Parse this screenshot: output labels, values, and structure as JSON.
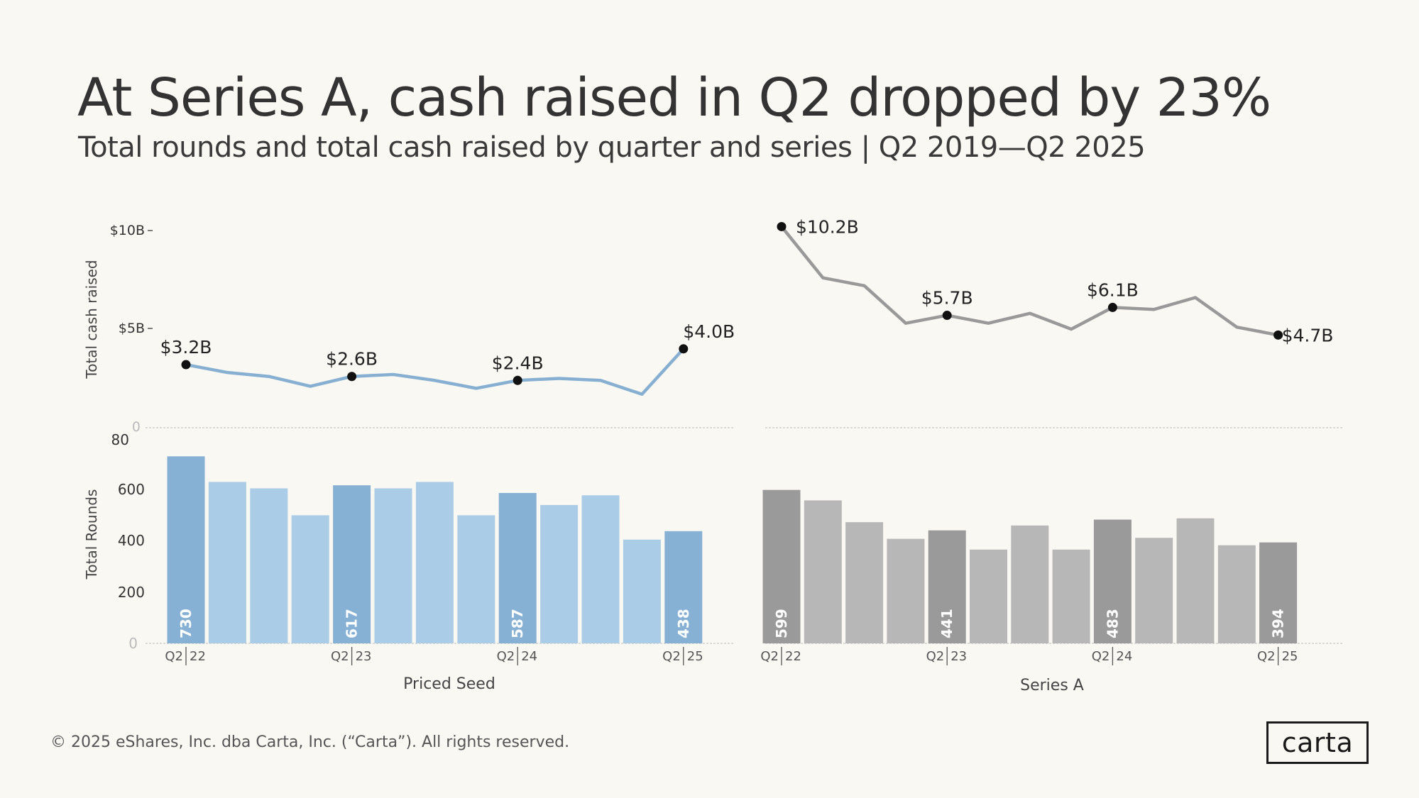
{
  "header": {
    "title": "At Series A, cash raised in Q2 dropped by 23%",
    "subtitle": "Total rounds and total cash raised by quarter and series | Q2 2019—Q2 2025"
  },
  "footer": {
    "copyright": "© 2025 eShares, Inc. dba Carta, Inc. (“Carta”). All rights reserved."
  },
  "logo": {
    "text": "carta"
  },
  "axes": {
    "cash_label": "Total cash raised",
    "rounds_label": "Total Rounds",
    "cash_ticks": [
      "$10B",
      "$5B",
      "0"
    ],
    "rounds_ticks": [
      "80",
      "600",
      "400",
      "200",
      "0"
    ]
  },
  "colors": {
    "seed_line": "#86afd2",
    "seed_bar_highlight": "#87b1d4",
    "seed_bar": "#abcce6",
    "seriesa_line": "#999999",
    "seriesa_bar_highlight": "#9a9a9a",
    "seriesa_bar": "#b7b7b7"
  },
  "chart_data": [
    {
      "type": "line",
      "panel": "Priced Seed",
      "series_name": "Total cash raised",
      "unit": "$B",
      "y_range": [
        0,
        10
      ],
      "values": [
        3.2,
        2.8,
        2.6,
        2.1,
        2.6,
        2.7,
        2.4,
        2.0,
        2.4,
        2.5,
        2.4,
        1.7,
        4.0
      ],
      "labels": {
        "0": "$3.2B",
        "4": "$2.6B",
        "8": "$2.4B",
        "12": "$4.0B"
      }
    },
    {
      "type": "bar",
      "panel": "Priced Seed",
      "xlabel": "Priced Seed",
      "series_name": "Total Rounds",
      "y_range": [
        0,
        800
      ],
      "values": [
        730,
        630,
        605,
        500,
        617,
        605,
        630,
        500,
        587,
        540,
        578,
        405,
        438
      ],
      "highlight": [
        0,
        4,
        8,
        12
      ],
      "bar_labels": {
        "0": "730",
        "4": "617",
        "8": "587",
        "12": "438"
      },
      "ticks": [
        {
          "index": 0,
          "q": "Q2",
          "yr": "22"
        },
        {
          "index": 4,
          "q": "Q2",
          "yr": "23"
        },
        {
          "index": 8,
          "q": "Q2",
          "yr": "24"
        },
        {
          "index": 12,
          "q": "Q2",
          "yr": "25"
        }
      ]
    },
    {
      "type": "line",
      "panel": "Series A",
      "series_name": "Total cash raised",
      "unit": "$B",
      "y_range": [
        0,
        10
      ],
      "values": [
        10.2,
        7.6,
        7.2,
        5.3,
        5.7,
        5.3,
        5.8,
        5.0,
        6.1,
        6.0,
        6.6,
        5.1,
        4.7
      ],
      "labels": {
        "0": "$10.2B",
        "4": "$5.7B",
        "8": "$6.1B",
        "12": "$4.7B"
      }
    },
    {
      "type": "bar",
      "panel": "Series A",
      "xlabel": "Series A",
      "series_name": "Total Rounds",
      "y_range": [
        0,
        800
      ],
      "values": [
        599,
        558,
        473,
        408,
        441,
        366,
        460,
        366,
        483,
        412,
        488,
        383,
        394
      ],
      "highlight": [
        0,
        4,
        8,
        12
      ],
      "bar_labels": {
        "0": "599",
        "4": "441",
        "8": "483",
        "12": "394"
      },
      "ticks": [
        {
          "index": 0,
          "q": "Q2",
          "yr": "22"
        },
        {
          "index": 4,
          "q": "Q2",
          "yr": "23"
        },
        {
          "index": 8,
          "q": "Q2",
          "yr": "24"
        },
        {
          "index": 12,
          "q": "Q2",
          "yr": "25"
        }
      ]
    }
  ]
}
